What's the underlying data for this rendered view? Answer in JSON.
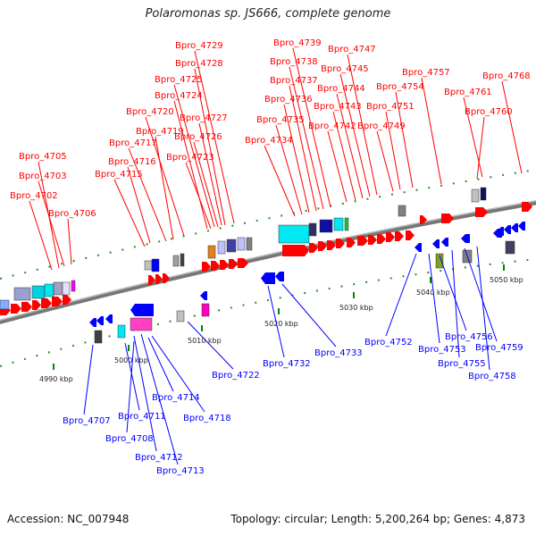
{
  "title": "Polaromonas sp. JS666, complete genome",
  "footer": {
    "accession": "Accession: NC_007948",
    "summary": "Topology: circular; Length: 5,200,264 bp; Genes: 4,873"
  },
  "colors": {
    "forward": "#ff0000",
    "reverse": "#0000ff",
    "backbone": "#888888",
    "ticks": "#008800"
  },
  "kbp_labels": [
    "4990 kbp",
    "5000 kbp",
    "5010 kbp",
    "5020 kbp",
    "5030 kbp",
    "5040 kbp",
    "5050 kbp"
  ],
  "top_genes": [
    "Bpro_4705",
    "Bpro_4703",
    "Bpro_4702",
    "Bpro_4706",
    "Bpro_4715",
    "Bpro_4716",
    "Bpro_4717",
    "Bpro_4719",
    "Bpro_4720",
    "Bpro_4724",
    "Bpro_4725",
    "Bpro_4728",
    "Bpro_4729",
    "Bpro_4727",
    "Bpro_4726",
    "Bpro_4723",
    "Bpro_4734",
    "Bpro_4735",
    "Bpro_4736",
    "Bpro_4737",
    "Bpro_4738",
    "Bpro_4739",
    "Bpro_4742",
    "Bpro_4743",
    "Bpro_4744",
    "Bpro_4745",
    "Bpro_4747",
    "Bpro_4749",
    "Bpro_4751",
    "Bpro_4754",
    "Bpro_4757",
    "Bpro_4760",
    "Bpro_4761",
    "Bpro_4768"
  ],
  "bottom_genes": [
    "Bpro_4707",
    "Bpro_4711",
    "Bpro_4708",
    "Bpro_4714",
    "Bpro_4712",
    "Bpro_4713",
    "Bpro_4718",
    "Bpro_4722",
    "Bpro_4732",
    "Bpro_4733",
    "Bpro_4752",
    "Bpro_4753",
    "Bpro_4756",
    "Bpro_4755",
    "Bpro_4759",
    "Bpro_4758"
  ]
}
